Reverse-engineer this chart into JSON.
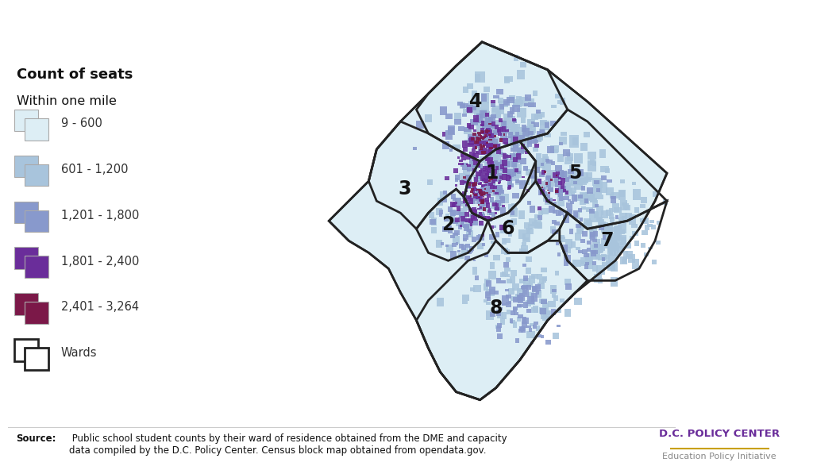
{
  "background_color": "#ffffff",
  "legend_items": [
    {
      "label": "9 - 600",
      "color": "#ddeef5"
    },
    {
      "label": "601 - 1,200",
      "color": "#a8c4dc"
    },
    {
      "label": "1,201 - 1,800",
      "color": "#8899cc"
    },
    {
      "label": "1,801 - 2,400",
      "color": "#6a2d9a"
    },
    {
      "label": "2,401 - 3,264",
      "color": "#7b1848"
    }
  ],
  "ward_label": "Wards",
  "source_bold": "Source:",
  "source_text": " Public school student counts by their ward of residence obtained from the DME and capacity\ndata compiled by the D.C. Policy Center. Census block map obtained from opendata.gov.",
  "org_name": "D.C. POLICY CENTER",
  "org_sub": "Education Policy Initiative",
  "org_color": "#6a2d9a",
  "org_line_color": "#c8a000",
  "map_bg": "#ddeef5",
  "ward_boundary_color": "#222222",
  "outer_boundary_color": "#222222"
}
